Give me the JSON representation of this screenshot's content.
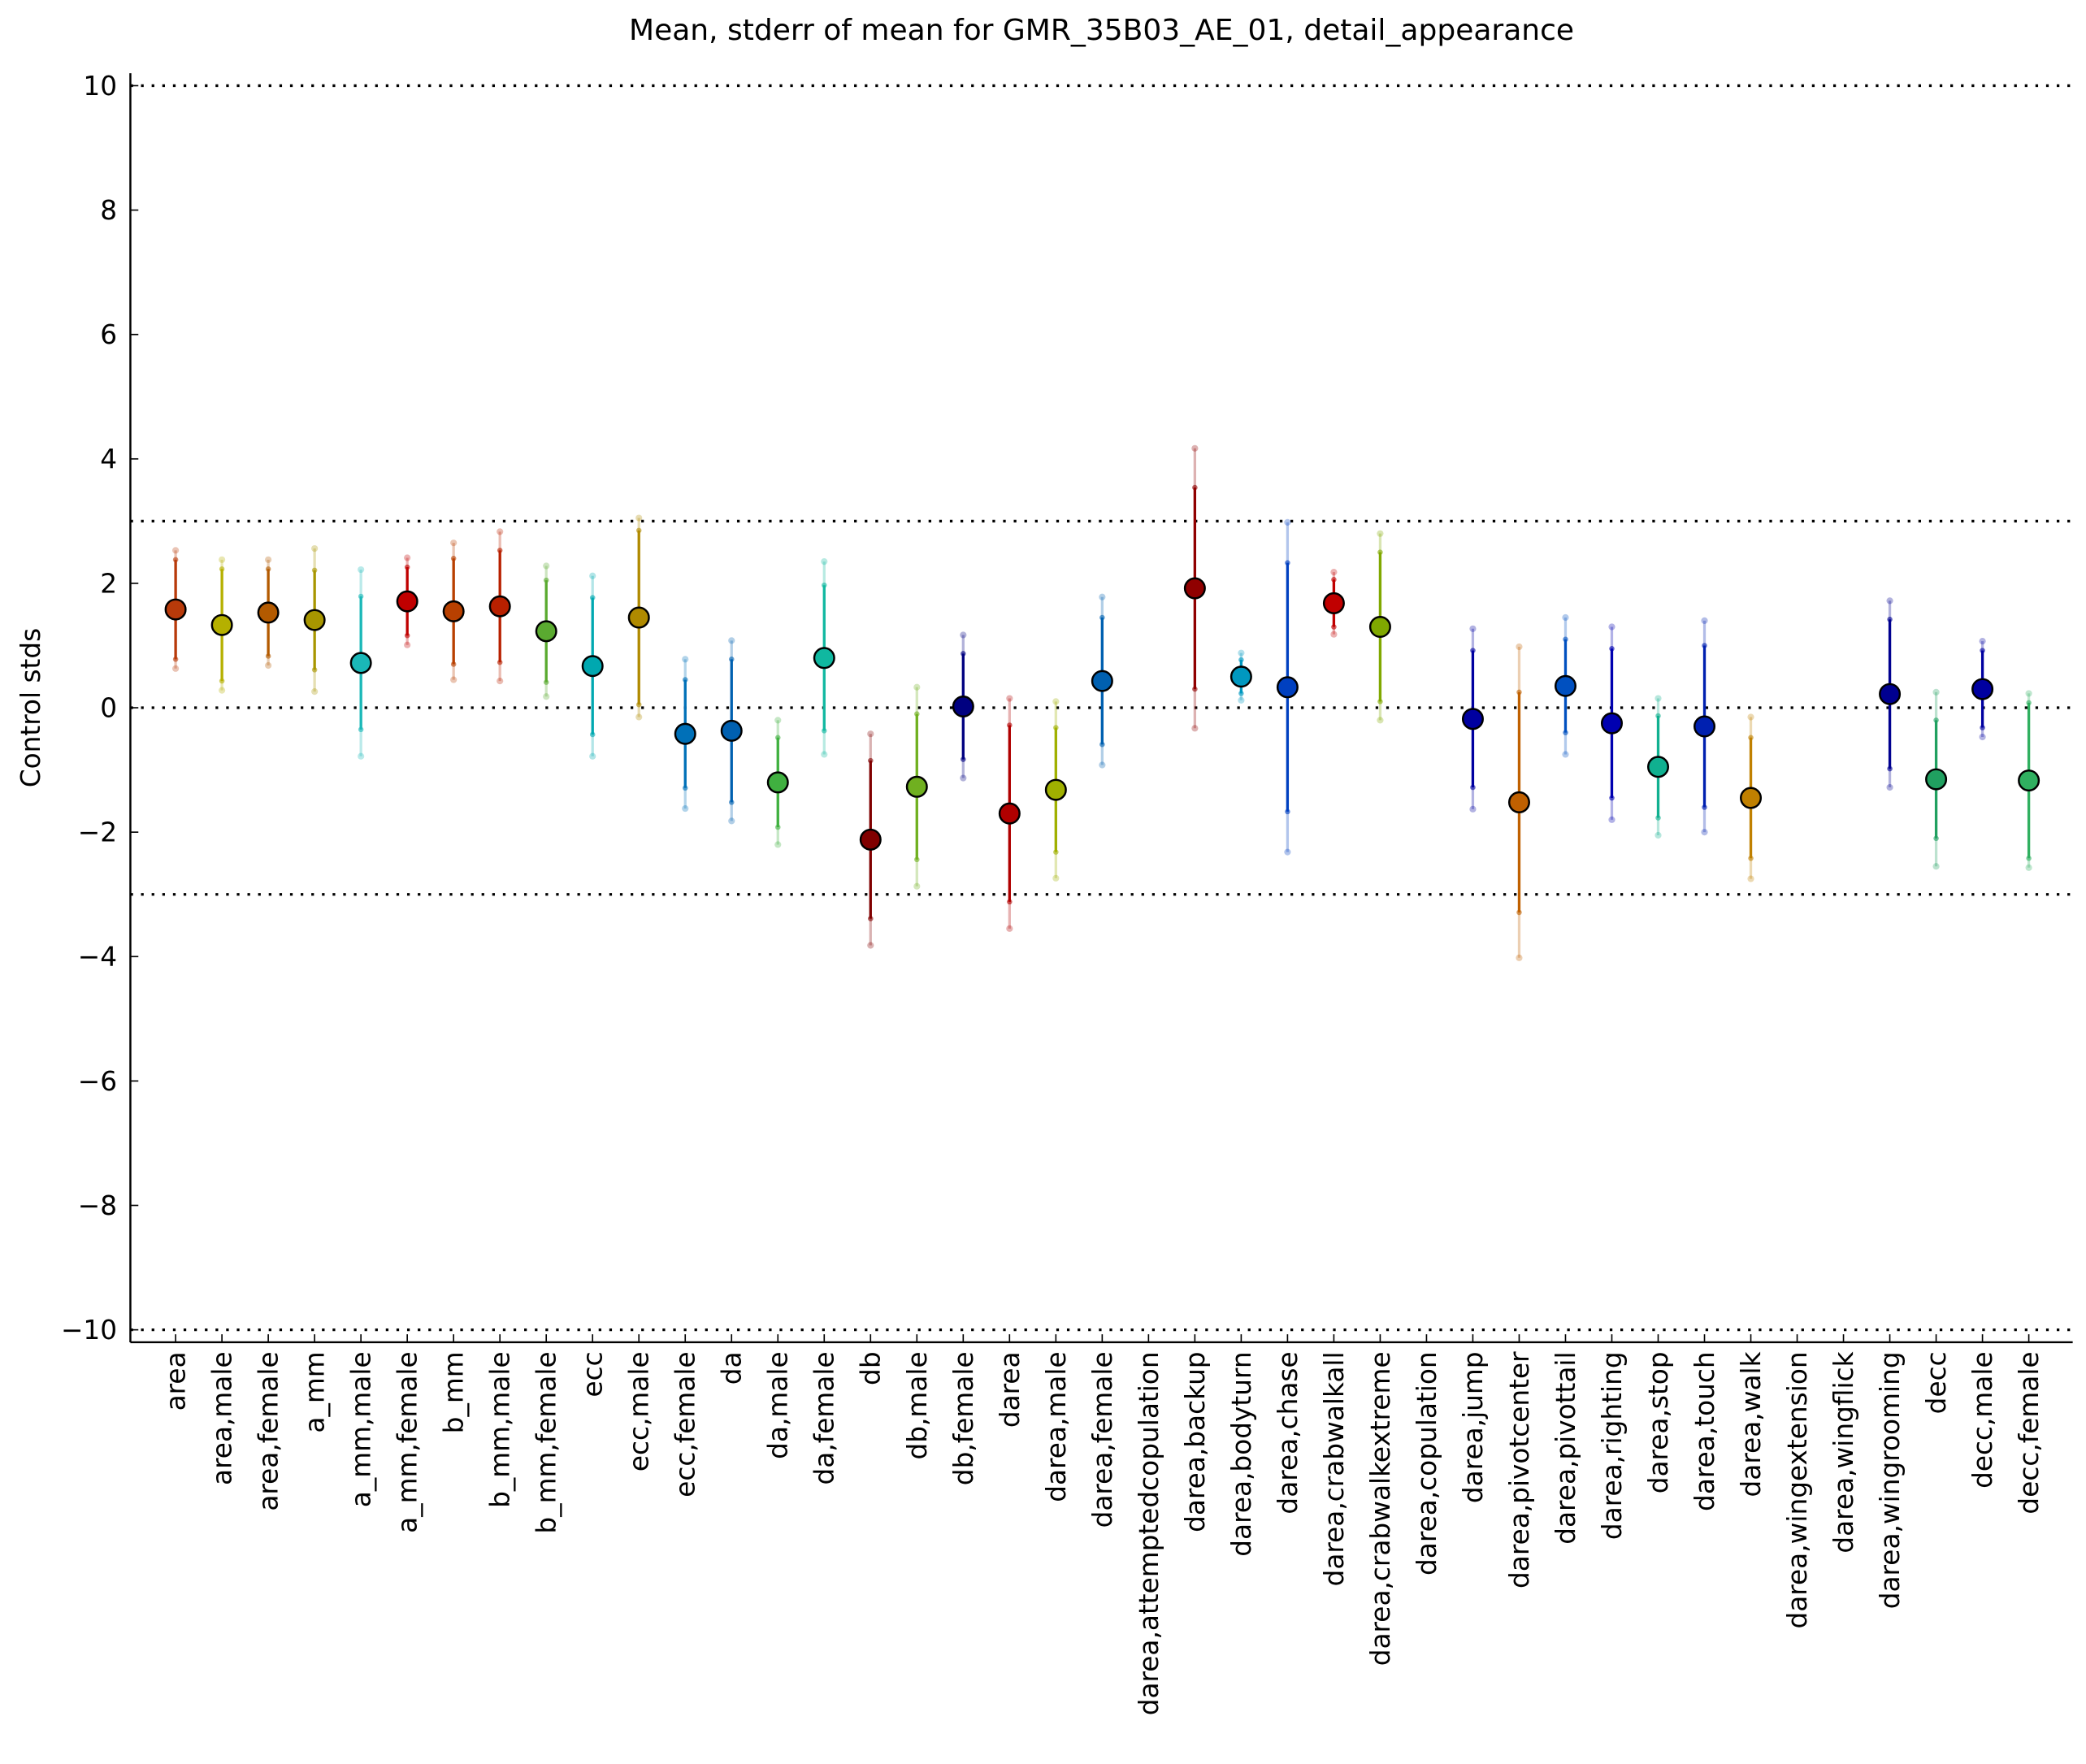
{
  "chart_data": {
    "type": "errorbar",
    "title": "Mean, stderr of mean for GMR_35B03_AE_01, detail_appearance",
    "ylabel": "Control stds",
    "ylim": [
      -10.2,
      10.2
    ],
    "yticks": [
      {
        "value": -10,
        "label": "−10"
      },
      {
        "value": -8,
        "label": "−8"
      },
      {
        "value": -6,
        "label": "−6"
      },
      {
        "value": -4,
        "label": "−4"
      },
      {
        "value": -2,
        "label": "−2"
      },
      0,
      2,
      4,
      6,
      8,
      10
    ],
    "hlines": [
      -10,
      -3,
      0,
      3,
      10
    ],
    "categories": [
      "area",
      "area,male",
      "area,female",
      "a_mm",
      "a_mm,male",
      "a_mm,female",
      "b_mm",
      "b_mm,male",
      "b_mm,female",
      "ecc",
      "ecc,male",
      "ecc,female",
      "da",
      "da,male",
      "da,female",
      "db",
      "db,male",
      "db,female",
      "darea",
      "darea,male",
      "darea,female",
      "darea,attemptedcopulation",
      "darea,backup",
      "darea,bodyturn",
      "darea,chase",
      "darea,crabwalkall",
      "darea,crabwalkextreme",
      "darea,copulation",
      "darea,jump",
      "darea,pivotcenter",
      "darea,pivottail",
      "darea,righting",
      "darea,stop",
      "darea,touch",
      "darea,walk",
      "darea,wingextension",
      "darea,wingflick",
      "darea,wingrooming",
      "decc",
      "decc,male",
      "decc,female"
    ],
    "values": [
      1.58,
      1.33,
      1.53,
      1.41,
      0.72,
      1.71,
      1.55,
      1.63,
      1.23,
      0.67,
      1.45,
      -0.42,
      -0.37,
      -1.2,
      0.8,
      -2.12,
      -1.27,
      0.02,
      -1.7,
      -1.32,
      0.43,
      null,
      1.92,
      0.5,
      0.33,
      1.68,
      1.3,
      null,
      -0.18,
      -1.52,
      0.35,
      -0.25,
      -0.95,
      -0.3,
      -1.45,
      null,
      null,
      0.22,
      -1.15,
      0.3,
      -1.17
    ],
    "errors": [
      0.8,
      0.9,
      0.7,
      0.8,
      1.07,
      0.55,
      0.85,
      0.9,
      0.82,
      1.1,
      1.4,
      0.87,
      1.15,
      0.72,
      1.17,
      1.27,
      1.17,
      0.85,
      1.42,
      1.0,
      1.02,
      null,
      1.62,
      0.27,
      2.0,
      0.38,
      1.2,
      null,
      1.1,
      1.77,
      0.75,
      1.2,
      0.82,
      1.3,
      0.97,
      null,
      null,
      1.2,
      0.95,
      0.62,
      1.25
    ],
    "spreads": [
      0.95,
      1.05,
      0.85,
      1.15,
      1.5,
      0.7,
      1.1,
      1.2,
      1.05,
      1.45,
      1.6,
      1.2,
      1.45,
      1.0,
      1.55,
      1.7,
      1.6,
      1.15,
      1.85,
      1.42,
      1.35,
      null,
      2.25,
      0.38,
      2.65,
      0.5,
      1.5,
      null,
      1.45,
      2.5,
      1.1,
      1.55,
      1.1,
      1.7,
      1.3,
      null,
      null,
      1.5,
      1.4,
      0.77,
      1.4
    ],
    "colors": [
      "#b83a0a",
      "#b5b000",
      "#b35a00",
      "#a89600",
      "#1ab8b8",
      "#c00000",
      "#b84000",
      "#b82000",
      "#5aaa30",
      "#00a8b0",
      "#b08a00",
      "#0070b8",
      "#0060b0",
      "#40b040",
      "#10b8a0",
      "#800000",
      "#70b020",
      "#000080",
      "#b00000",
      "#a0b000",
      "#0060b0",
      "#999999",
      "#900000",
      "#0098c0",
      "#0040c0",
      "#c00000",
      "#80a800",
      "#999999",
      "#0000a0",
      "#c06000",
      "#0050c0",
      "#0000b0",
      "#10b090",
      "#0020b0",
      "#c08000",
      "#999999",
      "#999999",
      "#000090",
      "#20a060",
      "#0000a0",
      "#30b060"
    ]
  }
}
